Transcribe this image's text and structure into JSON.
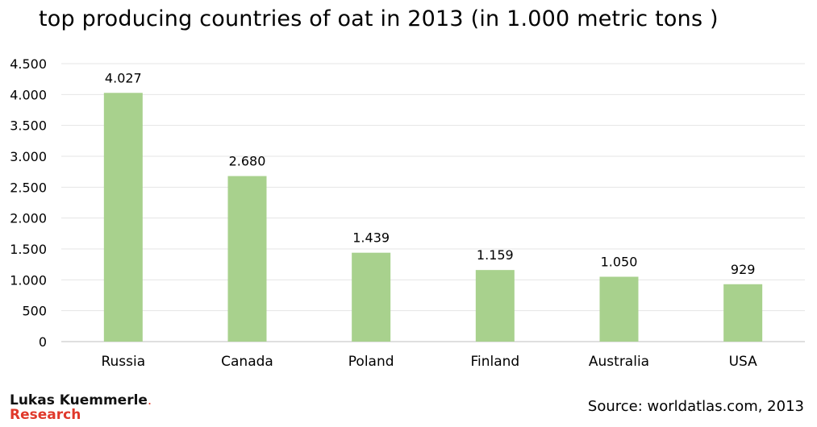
{
  "title": "top producing countries of oat in 2013 (in 1.000 metric tons )",
  "source": "Source: worldatlas.com, 2013",
  "logo": {
    "line1": "Lukas Kuemmerle",
    "dot": ".",
    "line2": "Research"
  },
  "colors": {
    "bar": "#a8d18d",
    "grid": "#e4e4e4",
    "axis": "#bfbfbf"
  },
  "chart_data": {
    "type": "bar",
    "title": "top producing countries of oat in 2013 (in 1.000 metric tons )",
    "xlabel": "",
    "ylabel": "",
    "categories": [
      "Russia",
      "Canada",
      "Poland",
      "Finland",
      "Australia",
      "USA"
    ],
    "values": [
      4027,
      2680,
      1439,
      1159,
      1050,
      929
    ],
    "value_labels": [
      "4.027",
      "2.680",
      "1.439",
      "1.159",
      "1.050",
      "929"
    ],
    "ylim": [
      0,
      4500
    ],
    "yticks": [
      0,
      500,
      1000,
      1500,
      2000,
      2500,
      3000,
      3500,
      4000,
      4500
    ],
    "ytick_labels": [
      "0",
      "500",
      "1.000",
      "1.500",
      "2.000",
      "2.500",
      "3.000",
      "3.500",
      "4.000",
      "4.500"
    ],
    "grid": true,
    "legend": "none"
  }
}
